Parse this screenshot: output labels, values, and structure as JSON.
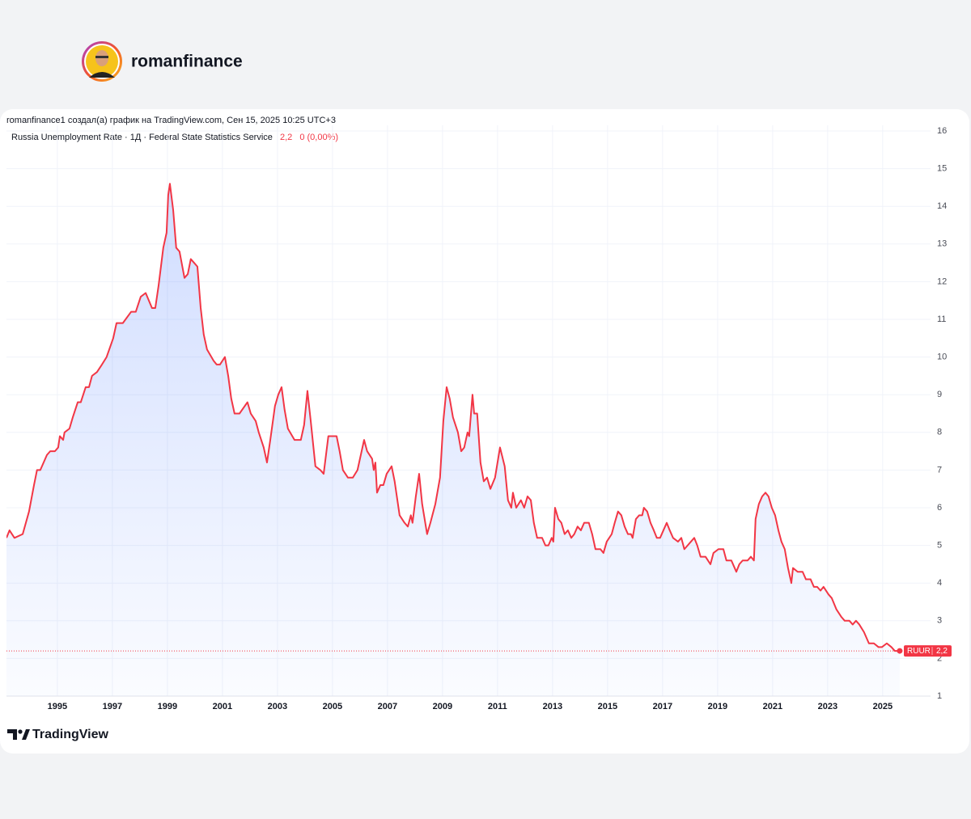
{
  "header": {
    "username": "romanfinance"
  },
  "chart_data": {
    "type": "area",
    "caption": "romanfinance1 создал(а) график на TradingView.com, Сен 15, 2025 10:25 UTC+3",
    "title": "Russia Unemployment Rate · 1Д · Federal State Statistics Service",
    "last_value": 2.2,
    "last_value_label": "2,2",
    "change": "0 (0,00%)",
    "x": [
      1993.15,
      1993.26,
      1993.44,
      1993.74,
      1993.97,
      1994.15,
      1994.26,
      1994.38,
      1994.62,
      1994.74,
      1994.91,
      1995.03,
      1995.09,
      1995.21,
      1995.26,
      1995.44,
      1995.56,
      1995.74,
      1995.85,
      1996.03,
      1996.15,
      1996.26,
      1996.44,
      1996.62,
      1996.79,
      1997.03,
      1997.15,
      1997.38,
      1997.68,
      1997.85,
      1998.03,
      1998.21,
      1998.44,
      1998.56,
      1998.68,
      1998.85,
      1998.97,
      1999.03,
      1999.09,
      1999.21,
      1999.32,
      1999.44,
      1999.62,
      1999.74,
      1999.85,
      1999.97,
      2000.09,
      2000.21,
      2000.32,
      2000.44,
      2000.68,
      2000.79,
      2000.91,
      2001.09,
      2001.21,
      2001.32,
      2001.44,
      2001.62,
      2001.91,
      2002.03,
      2002.21,
      2002.32,
      2002.5,
      2002.62,
      2002.74,
      2002.91,
      2003.03,
      2003.15,
      2003.26,
      2003.38,
      2003.62,
      2003.85,
      2003.97,
      2004.09,
      2004.21,
      2004.38,
      2004.56,
      2004.68,
      2004.85,
      2005.15,
      2005.26,
      2005.38,
      2005.56,
      2005.74,
      2005.91,
      2006.03,
      2006.15,
      2006.26,
      2006.44,
      2006.5,
      2006.56,
      2006.62,
      2006.74,
      2006.85,
      2006.97,
      2007.15,
      2007.26,
      2007.44,
      2007.62,
      2007.74,
      2007.85,
      2007.91,
      2008.03,
      2008.15,
      2008.26,
      2008.44,
      2008.56,
      2008.74,
      2008.91,
      2009.03,
      2009.15,
      2009.26,
      2009.38,
      2009.56,
      2009.68,
      2009.79,
      2009.91,
      2009.97,
      2010.09,
      2010.15,
      2010.26,
      2010.38,
      2010.5,
      2010.62,
      2010.74,
      2010.91,
      2011.09,
      2011.26,
      2011.38,
      2011.5,
      2011.56,
      2011.68,
      2011.85,
      2011.97,
      2012.09,
      2012.21,
      2012.32,
      2012.44,
      2012.62,
      2012.74,
      2012.85,
      2012.97,
      2013.03,
      2013.09,
      2013.21,
      2013.32,
      2013.44,
      2013.56,
      2013.68,
      2013.79,
      2013.91,
      2014.03,
      2014.15,
      2014.32,
      2014.44,
      2014.56,
      2014.74,
      2014.85,
      2014.97,
      2015.15,
      2015.26,
      2015.38,
      2015.5,
      2015.62,
      2015.74,
      2015.85,
      2015.91,
      2016.03,
      2016.15,
      2016.26,
      2016.32,
      2016.44,
      2016.56,
      2016.68,
      2016.79,
      2016.91,
      2017.03,
      2017.15,
      2017.26,
      2017.38,
      2017.56,
      2017.68,
      2017.79,
      2017.91,
      2018.03,
      2018.15,
      2018.26,
      2018.38,
      2018.56,
      2018.74,
      2018.85,
      2019.03,
      2019.21,
      2019.32,
      2019.5,
      2019.62,
      2019.68,
      2019.79,
      2019.91,
      2020.09,
      2020.21,
      2020.32,
      2020.38,
      2020.5,
      2020.62,
      2020.74,
      2020.85,
      2020.97,
      2021.09,
      2021.21,
      2021.32,
      2021.44,
      2021.56,
      2021.68,
      2021.74,
      2021.91,
      2022.09,
      2022.21,
      2022.38,
      2022.5,
      2022.62,
      2022.74,
      2022.85,
      2023.03,
      2023.15,
      2023.32,
      2023.5,
      2023.62,
      2023.79,
      2023.91,
      2024.03,
      2024.15,
      2024.32,
      2024.5,
      2024.68,
      2024.85,
      2024.97,
      2025.15,
      2025.32,
      2025.44,
      2025.62
    ],
    "series": [
      {
        "name": "RUUR",
        "color": "#f23645",
        "values": [
          5.2,
          5.4,
          5.2,
          5.3,
          5.9,
          6.6,
          7.0,
          7.0,
          7.4,
          7.5,
          7.5,
          7.6,
          7.9,
          7.8,
          8.0,
          8.1,
          8.4,
          8.8,
          8.8,
          9.2,
          9.2,
          9.5,
          9.6,
          9.8,
          10.0,
          10.5,
          10.9,
          10.9,
          11.2,
          11.2,
          11.6,
          11.7,
          11.3,
          11.3,
          11.9,
          12.9,
          13.3,
          14.3,
          14.6,
          13.9,
          12.9,
          12.8,
          12.1,
          12.2,
          12.6,
          12.5,
          12.4,
          11.3,
          10.6,
          10.2,
          9.9,
          9.8,
          9.8,
          10.0,
          9.5,
          8.9,
          8.5,
          8.5,
          8.8,
          8.5,
          8.3,
          8.0,
          7.6,
          7.2,
          7.8,
          8.7,
          9.0,
          9.2,
          8.6,
          8.1,
          7.8,
          7.8,
          8.2,
          9.1,
          8.3,
          7.1,
          7.0,
          6.9,
          7.9,
          7.9,
          7.5,
          7.0,
          6.8,
          6.8,
          7.0,
          7.4,
          7.8,
          7.5,
          7.3,
          7.0,
          7.2,
          6.4,
          6.6,
          6.6,
          6.9,
          7.1,
          6.7,
          5.8,
          5.6,
          5.5,
          5.8,
          5.6,
          6.3,
          6.9,
          6.1,
          5.3,
          5.6,
          6.1,
          6.8,
          8.3,
          9.2,
          8.9,
          8.4,
          8.0,
          7.5,
          7.6,
          8.0,
          7.9,
          9.0,
          8.5,
          8.5,
          7.2,
          6.7,
          6.8,
          6.5,
          6.8,
          7.6,
          7.1,
          6.2,
          6.0,
          6.4,
          6.0,
          6.2,
          6.0,
          6.3,
          6.2,
          5.6,
          5.2,
          5.2,
          5.0,
          5.0,
          5.2,
          5.1,
          6.0,
          5.7,
          5.6,
          5.3,
          5.4,
          5.2,
          5.3,
          5.5,
          5.4,
          5.6,
          5.6,
          5.3,
          4.9,
          4.9,
          4.8,
          5.1,
          5.3,
          5.6,
          5.9,
          5.8,
          5.5,
          5.3,
          5.3,
          5.2,
          5.7,
          5.8,
          5.8,
          6.0,
          5.9,
          5.6,
          5.4,
          5.2,
          5.2,
          5.4,
          5.6,
          5.4,
          5.2,
          5.1,
          5.2,
          4.9,
          5.0,
          5.1,
          5.2,
          5.0,
          4.7,
          4.7,
          4.5,
          4.8,
          4.9,
          4.9,
          4.6,
          4.6,
          4.4,
          4.3,
          4.5,
          4.6,
          4.6,
          4.7,
          4.6,
          5.7,
          6.1,
          6.3,
          6.4,
          6.3,
          6.0,
          5.8,
          5.4,
          5.1,
          4.9,
          4.4,
          4.0,
          4.4,
          4.3,
          4.3,
          4.1,
          4.1,
          3.9,
          3.9,
          3.8,
          3.9,
          3.7,
          3.6,
          3.3,
          3.1,
          3.0,
          3.0,
          2.9,
          3.0,
          2.9,
          2.7,
          2.4,
          2.4,
          2.3,
          2.3,
          2.4,
          2.3,
          2.2,
          2.2
        ]
      }
    ],
    "xlim": [
      1993.15,
      2026.74
    ],
    "xticks": [
      1995,
      1997,
      1999,
      2001,
      2003,
      2005,
      2007,
      2009,
      2011,
      2013,
      2015,
      2017,
      2019,
      2021,
      2023,
      2025
    ],
    "ylim": [
      1,
      16.15
    ],
    "yticks": [
      1,
      2,
      3,
      4,
      5,
      6,
      7,
      8,
      9,
      10,
      11,
      12,
      13,
      14,
      15,
      16
    ],
    "grid": true
  },
  "footer": {
    "brand": "TradingView"
  }
}
